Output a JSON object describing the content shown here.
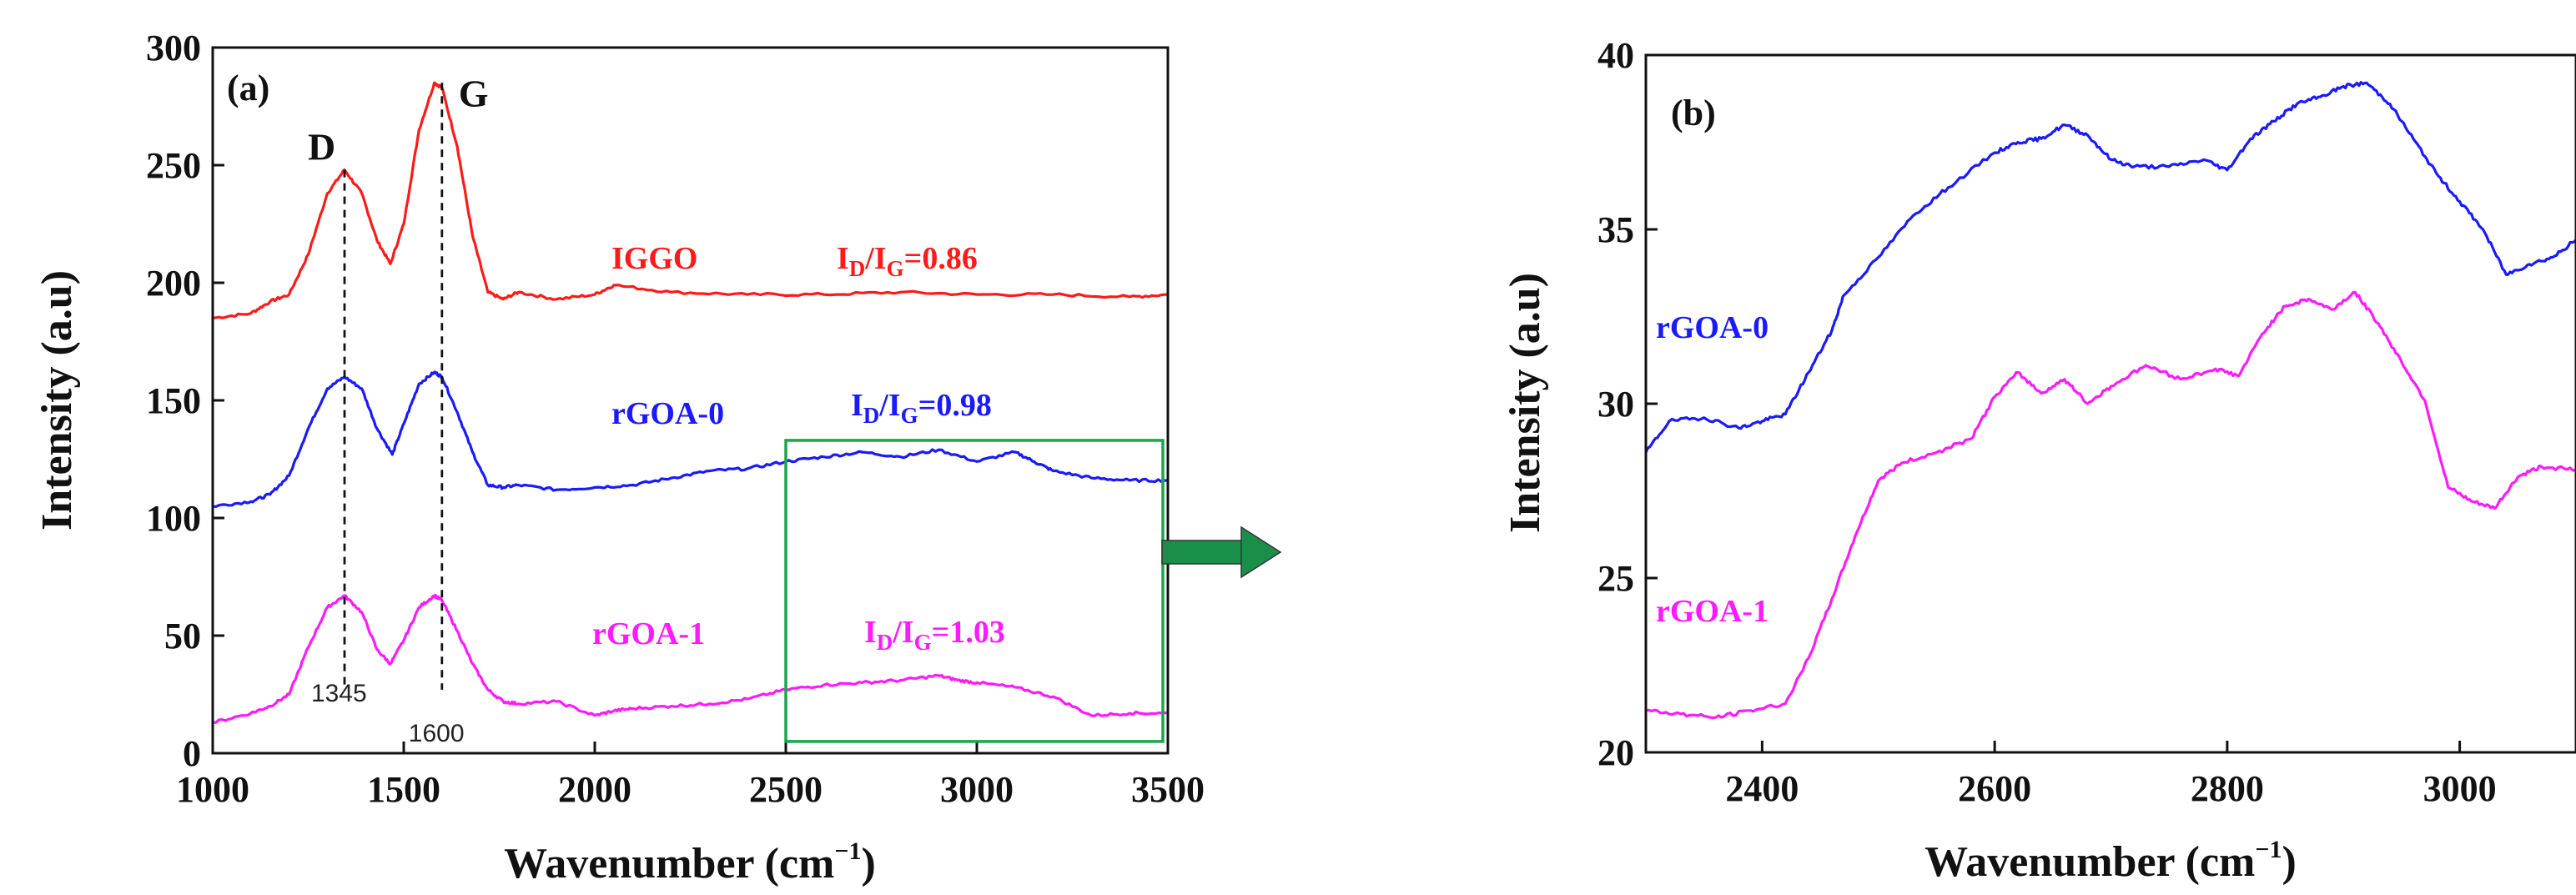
{
  "chart_data": [
    {
      "panel": "(a)",
      "type": "line",
      "xlabel_main": "Wavenumber (cm",
      "xlabel_sup": "−1",
      "xlabel_close": ")",
      "ylabel": "Intensity (a.u)",
      "xlim": [
        1000,
        3500
      ],
      "ylim": [
        0,
        300
      ],
      "xticks": [
        1000,
        1500,
        2000,
        2500,
        3000,
        3500
      ],
      "yticks": [
        0,
        50,
        100,
        150,
        200,
        250,
        300
      ],
      "peaks": [
        {
          "letter": "D",
          "position": 1345,
          "position_label": "1345"
        },
        {
          "letter": "G",
          "position": 1600,
          "position_label": "1600"
        }
      ],
      "zoom_box": {
        "x": [
          2500,
          3500
        ],
        "y": [
          5,
          133
        ]
      },
      "series": [
        {
          "name": "IGGO",
          "color": "#ff1a1a",
          "ratio": {
            "i": "I",
            "d": "D",
            "slash": "/",
            "g": "G",
            "value": "=0.86"
          },
          "x": [
            1000,
            1100,
            1150,
            1200,
            1250,
            1300,
            1345,
            1390,
            1430,
            1465,
            1500,
            1540,
            1580,
            1600,
            1640,
            1680,
            1720,
            1760,
            1800,
            1900,
            2000,
            2050,
            2200,
            2400,
            2600,
            2800,
            3000,
            3200,
            3400,
            3500
          ],
          "y": [
            185,
            187,
            192,
            195,
            212,
            238,
            248,
            238,
            218,
            208,
            225,
            265,
            285,
            283,
            258,
            220,
            196,
            193,
            196,
            193,
            195,
            199,
            196,
            195,
            195,
            196,
            195,
            195,
            194,
            195
          ]
        },
        {
          "name": "rGOA-0",
          "color": "#1a1aff",
          "ratio": {
            "i": "I",
            "d": "D",
            "slash": "/",
            "g": "G",
            "value": "=0.98"
          },
          "x": [
            1000,
            1100,
            1150,
            1200,
            1250,
            1300,
            1345,
            1390,
            1430,
            1470,
            1500,
            1540,
            1580,
            1600,
            1640,
            1680,
            1720,
            1760,
            1800,
            1900,
            2000,
            2100,
            2200,
            2300,
            2400,
            2500,
            2600,
            2700,
            2800,
            2900,
            3000,
            3100,
            3150,
            3200,
            3300,
            3400,
            3500
          ],
          "y": [
            105,
            107,
            110,
            118,
            138,
            155,
            160,
            155,
            138,
            127,
            140,
            157,
            162,
            160,
            145,
            128,
            114,
            113,
            114,
            112,
            113,
            114,
            117,
            120,
            121,
            124,
            126,
            128,
            126,
            129,
            124,
            128,
            124,
            120,
            117,
            116,
            116
          ]
        },
        {
          "name": "rGOA-1",
          "color": "#ff1aff",
          "ratio": {
            "i": "I",
            "d": "D",
            "slash": "/",
            "g": "G",
            "value": "=1.03"
          },
          "x": [
            1000,
            1100,
            1150,
            1200,
            1250,
            1300,
            1345,
            1390,
            1430,
            1465,
            1500,
            1540,
            1580,
            1600,
            1640,
            1680,
            1720,
            1760,
            1800,
            1900,
            2000,
            2050,
            2100,
            2200,
            2300,
            2400,
            2500,
            2600,
            2700,
            2800,
            2900,
            2950,
            3000,
            3100,
            3200,
            3300,
            3400,
            3500
          ],
          "y": [
            13,
            17,
            20,
            25,
            45,
            62,
            67,
            60,
            44,
            38,
            48,
            62,
            67,
            65,
            52,
            38,
            27,
            22,
            21,
            22,
            16,
            18,
            19,
            20,
            21,
            23,
            27,
            29,
            30,
            31,
            33,
            31,
            30,
            28,
            24,
            16,
            17,
            17
          ]
        }
      ]
    },
    {
      "panel": "(b)",
      "type": "line",
      "xlabel_main": "Wavenumber (cm",
      "xlabel_sup": "−1",
      "xlabel_close": ")",
      "ylabel": "Intensity (a.u)",
      "xlim": [
        2300,
        3100
      ],
      "ylim": [
        20,
        40
      ],
      "xticks": [
        2400,
        2600,
        2800,
        3000
      ],
      "yticks": [
        20,
        25,
        30,
        35,
        40
      ],
      "series": [
        {
          "name": "rGOA-0",
          "color": "#1a1aff",
          "x": [
            2300,
            2320,
            2350,
            2380,
            2400,
            2420,
            2440,
            2460,
            2470,
            2500,
            2530,
            2560,
            2600,
            2620,
            2640,
            2660,
            2680,
            2700,
            2720,
            2750,
            2780,
            2800,
            2820,
            2840,
            2860,
            2880,
            2900,
            2920,
            2940,
            2960,
            2980,
            3000,
            3020,
            3040,
            3060,
            3080,
            3100
          ],
          "y": [
            28.6,
            29.5,
            29.6,
            29.3,
            29.5,
            29.7,
            30.9,
            32.1,
            33.1,
            34.2,
            35.4,
            36.2,
            37.2,
            37.5,
            37.6,
            38.0,
            37.7,
            37.0,
            36.8,
            36.8,
            37.0,
            36.7,
            37.6,
            38.1,
            38.6,
            38.8,
            39.1,
            39.2,
            38.6,
            37.6,
            36.6,
            35.8,
            35.0,
            33.7,
            34.0,
            34.2,
            34.7
          ]
        },
        {
          "name": "rGOA-1",
          "color": "#ff1aff",
          "x": [
            2300,
            2330,
            2360,
            2390,
            2420,
            2440,
            2460,
            2480,
            2500,
            2520,
            2550,
            2580,
            2600,
            2620,
            2640,
            2660,
            2680,
            2700,
            2730,
            2760,
            2790,
            2810,
            2830,
            2850,
            2870,
            2890,
            2910,
            2930,
            2950,
            2970,
            2990,
            3010,
            3030,
            3050,
            3070,
            3100
          ],
          "y": [
            21.2,
            21.1,
            21.0,
            21.2,
            21.4,
            22.7,
            24.4,
            26.2,
            27.8,
            28.3,
            28.6,
            29.0,
            30.2,
            30.9,
            30.3,
            30.7,
            30.0,
            30.5,
            31.1,
            30.7,
            31.0,
            30.8,
            32.0,
            32.8,
            33.0,
            32.7,
            33.2,
            32.3,
            31.2,
            30.1,
            27.6,
            27.2,
            27.0,
            27.9,
            28.2,
            28.1
          ]
        }
      ]
    }
  ]
}
